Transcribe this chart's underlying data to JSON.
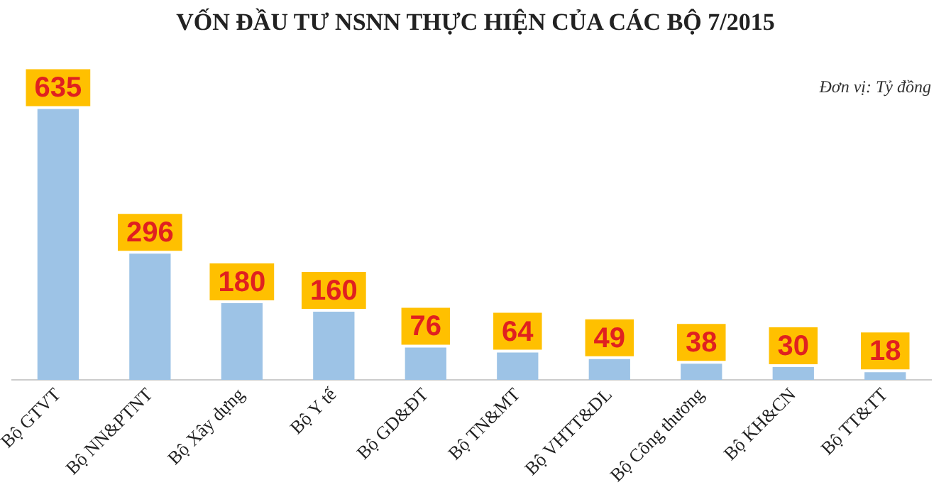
{
  "chart_data": {
    "type": "bar",
    "title": "VỐN ĐẦU TƯ NSNN THỰC HIỆN CỦA CÁC BỘ 7/2015",
    "categories": [
      "Bộ GTVT",
      "Bộ NN&PTNT",
      "Bộ Xây dựng",
      "Bộ Y tế",
      "Bộ GD&ĐT",
      "Bộ TN&MT",
      "Bộ VHTT&DL",
      "Bộ Công thương",
      "Bộ KH&CN",
      "Bộ TT&TT"
    ],
    "values": [
      635,
      296,
      180,
      160,
      76,
      64,
      49,
      38,
      30,
      18
    ],
    "color": "#9dc3e6",
    "data_labels": true,
    "annotations": [
      "Đơn vị: Tỷ đồng"
    ],
    "grid": false,
    "legend": false
  }
}
